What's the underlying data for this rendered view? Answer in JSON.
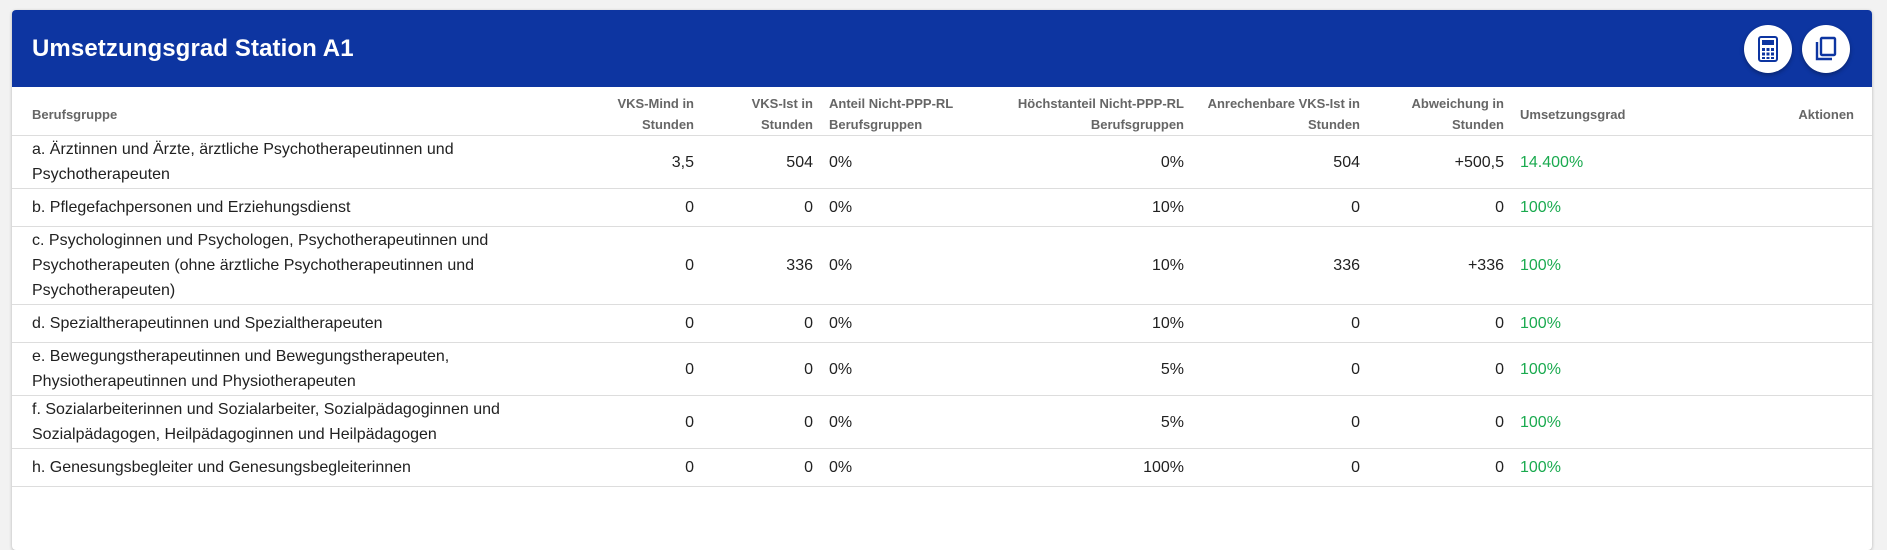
{
  "header": {
    "title": "Umsetzungsgrad Station A1",
    "calculator_icon": "calculator-icon",
    "copy_icon": "copy-icon"
  },
  "columns": {
    "berufsgruppe": "Berufsgruppe",
    "vks_mind": "VKS-Mind in Stunden",
    "vks_ist": "VKS-Ist in Stunden",
    "anteil": "Anteil Nicht-PPP-RL Berufsgruppen",
    "hoechstanteil": "Höchstanteil Nicht-PPP-RL Berufsgruppen",
    "anrechenbare": "Anrechenbare VKS-Ist in Stunden",
    "abweichung": "Abweichung in Stunden",
    "umsetzungsgrad": "Umsetzungsgrad",
    "aktionen": "Aktionen"
  },
  "rows": [
    {
      "berufsgruppe": "a. Ärztinnen und Ärzte, ärztliche Psychotherapeutinnen und Psychotherapeuten",
      "vks_mind": "3,5",
      "vks_ist": "504",
      "anteil": "0%",
      "hoechstanteil": "0%",
      "anrechenbare": "504",
      "abweichung": "+500,5",
      "umsetzungsgrad": "14.400%"
    },
    {
      "berufsgruppe": "b. Pflegefachpersonen und Erziehungsdienst",
      "vks_mind": "0",
      "vks_ist": "0",
      "anteil": "0%",
      "hoechstanteil": "10%",
      "anrechenbare": "0",
      "abweichung": "0",
      "umsetzungsgrad": "100%"
    },
    {
      "berufsgruppe": "c. Psychologinnen und Psychologen, Psychotherapeutinnen und Psychotherapeuten (ohne ärztliche Psychotherapeutinnen und Psychotherapeuten)",
      "vks_mind": "0",
      "vks_ist": "336",
      "anteil": "0%",
      "hoechstanteil": "10%",
      "anrechenbare": "336",
      "abweichung": "+336",
      "umsetzungsgrad": "100%"
    },
    {
      "berufsgruppe": "d. Spezialtherapeutinnen und Spezialtherapeuten",
      "vks_mind": "0",
      "vks_ist": "0",
      "anteil": "0%",
      "hoechstanteil": "10%",
      "anrechenbare": "0",
      "abweichung": "0",
      "umsetzungsgrad": "100%"
    },
    {
      "berufsgruppe": "e. Bewegungstherapeutinnen und Bewegungstherapeuten, Physiotherapeutinnen und Physiotherapeuten",
      "vks_mind": "0",
      "vks_ist": "0",
      "anteil": "0%",
      "hoechstanteil": "5%",
      "anrechenbare": "0",
      "abweichung": "0",
      "umsetzungsgrad": "100%"
    },
    {
      "berufsgruppe": "f. Sozialarbeiterinnen und Sozialarbeiter, Sozialpädagoginnen und Sozialpädagogen, Heilpädagoginnen und Heilpädagogen",
      "vks_mind": "0",
      "vks_ist": "0",
      "anteil": "0%",
      "hoechstanteil": "5%",
      "anrechenbare": "0",
      "abweichung": "0",
      "umsetzungsgrad": "100%"
    },
    {
      "berufsgruppe": "h. Genesungsbegleiter und Genesungsbegleiterinnen",
      "vks_mind": "0",
      "vks_ist": "0",
      "anteil": "0%",
      "hoechstanteil": "100%",
      "anrechenbare": "0",
      "abweichung": "0",
      "umsetzungsgrad": "100%"
    }
  ],
  "colors": {
    "header_bg": "#0d35a1",
    "success_green": "#1aaa4f"
  }
}
